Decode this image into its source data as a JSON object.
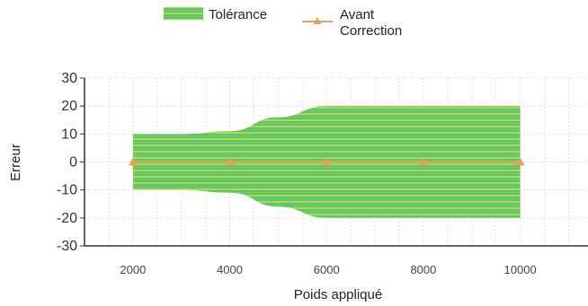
{
  "chart_data": {
    "type": "area",
    "title": "",
    "xlabel": "Poids appliqué",
    "ylabel": "Erreur",
    "xlim": [
      1000,
      11400
    ],
    "ylim": [
      -30,
      30
    ],
    "x_ticks": [
      2000,
      4000,
      6000,
      8000,
      10000
    ],
    "y_ticks": [
      30,
      20,
      10,
      0,
      -10,
      -20,
      -30
    ],
    "grid": true,
    "legend_position": "top",
    "colors": {
      "tolerance_fill": "#5fc46a",
      "tolerance_stripe": "#c8e04e",
      "series_line": "#e6a35a",
      "grid": "#e2e2e2",
      "axis": "#333333"
    },
    "legend": [
      {
        "label": "Tolérance",
        "kind": "area"
      },
      {
        "label_lines": [
          "Avant",
          "Correction"
        ],
        "kind": "line"
      }
    ],
    "tolerance": {
      "name": "Tolérance",
      "x": [
        2000,
        3000,
        4000,
        5000,
        6000,
        8000,
        10000
      ],
      "upper": [
        10,
        10,
        11,
        16,
        20,
        20,
        20
      ],
      "lower": [
        -10,
        -10,
        -11,
        -16,
        -20,
        -20,
        -20
      ]
    },
    "series": [
      {
        "name": "Avant Correction",
        "x": [
          2000,
          4000,
          6000,
          8000,
          10000
        ],
        "values": [
          0,
          0,
          0,
          0,
          0
        ]
      }
    ]
  }
}
